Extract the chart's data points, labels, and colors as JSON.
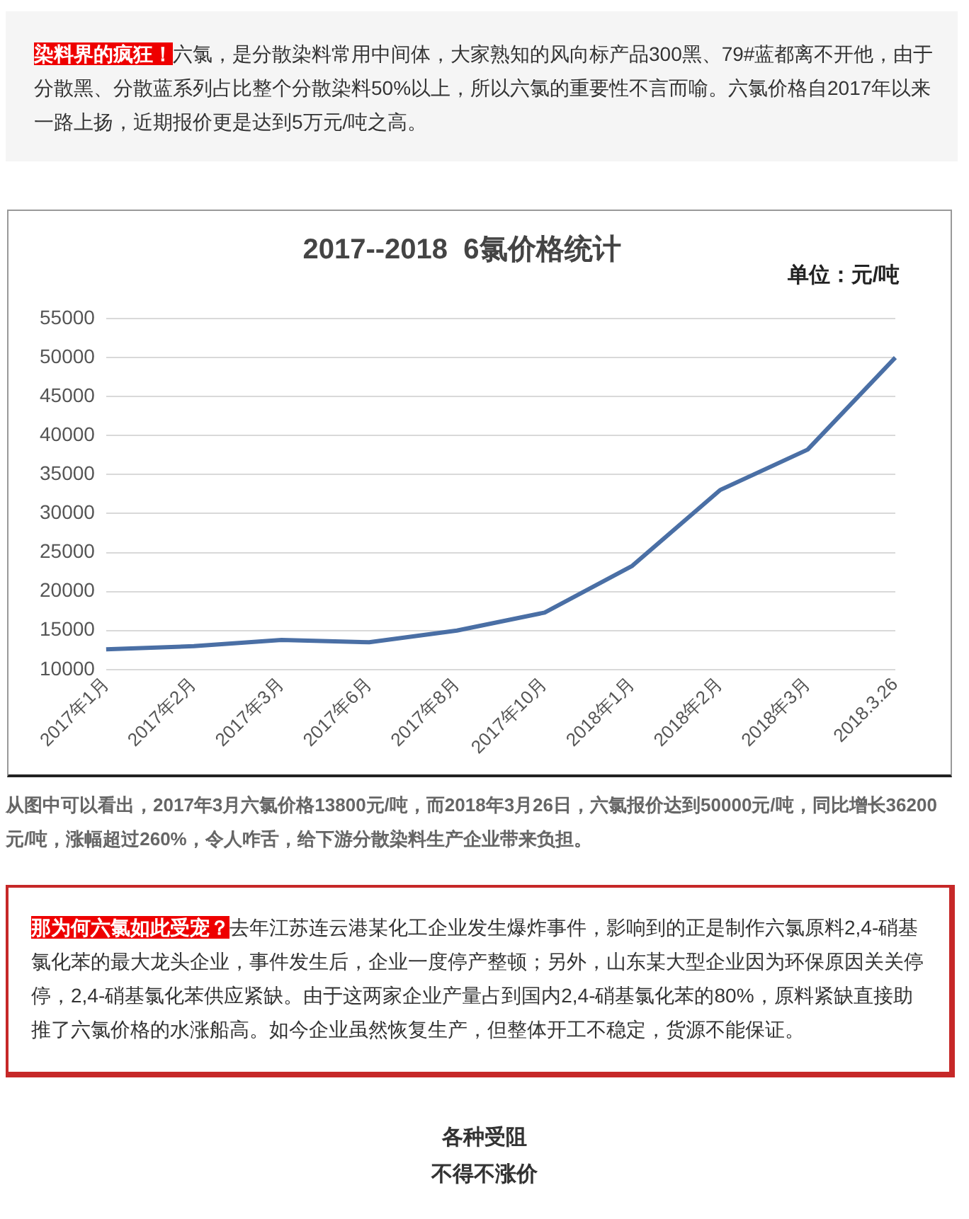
{
  "chart_data": {
    "type": "line",
    "title": "2017--2018  6氯价格统计",
    "subtitle": "单位：元/吨",
    "categories": [
      "2017年1月",
      "2017年2月",
      "2017年3月",
      "2017年6月",
      "2017年8月",
      "2017年10月",
      "2018年1月",
      "2018年2月",
      "2018年3月",
      "2018.3.26"
    ],
    "series": [
      {
        "color": "#4a6fa5",
        "values": [
          12600,
          13000,
          13800,
          13500,
          15000,
          17300,
          23300,
          33000,
          38200,
          50000
        ]
      }
    ],
    "ylim": [
      10000,
      55000
    ],
    "yticks": [
      10000,
      15000,
      20000,
      25000,
      30000,
      35000,
      40000,
      45000,
      50000,
      55000
    ],
    "grid": "y",
    "legend": false,
    "marker": "none",
    "line_style": "solid",
    "annotations": [
      "染料界的疯狂！",
      "六氯，是分散染料常用中间体，大家熟知的风向标产品300黑、79#蓝都离不开他，由于分散黑、分散蓝系列占比整个分散染料50%以上，所以六氯的重要性不言而喻。六氯价格自2017年以来一路上扬，近期报价更是达到5万元/吨之高。",
      "从图中可以看出，2017年3月六氯价格13800元/吨，而2018年3月26日，六氯报价达到50000元/吨，同比增长36200元/吨，涨幅超过260%，令人咋舌，给下游分散染料生产企业带来负担。",
      "那为何六氯如此受宠？",
      "去年江苏连云港某化工企业发生爆炸事件，影响到的正是制作六氯原料2,4-硝基氯化苯的最大龙头企业，事件发生后，企业一度停产整顿；另外，山东某大型企业因为环保原因关关停停，2,4-硝基氯化苯供应紧缺。由于这两家企业产量占到国内2,4-硝基氯化苯的80%，原料紧缺直接助推了六氯价格的水涨船高。如今企业虽然恢复生产，但整体开工不稳定，货源不能保证。",
      "各种受阻",
      "不得不涨价"
    ]
  }
}
